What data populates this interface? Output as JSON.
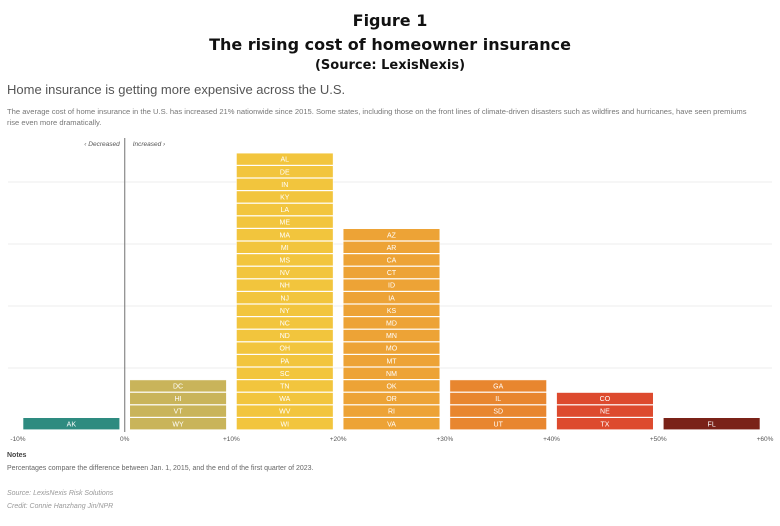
{
  "figure": {
    "label": "Figure 1",
    "title": "The rising cost of homeowner insurance",
    "source": "(Source: LexisNexis)"
  },
  "article": {
    "headline": "Home insurance is getting more expensive across the U.S.",
    "description": "The average cost of home insurance in the U.S. has increased 21% nationwide since 2015. Some states, including those on the front lines of climate-driven disasters such as wildfires and hurricanes, have seen premiums rise even more dramatically."
  },
  "notes": {
    "heading": "Notes",
    "text": "Percentages compare the difference between Jan. 1, 2015, and the end of the first quarter of 2023."
  },
  "credits": {
    "source": "Source: LexisNexis Risk Solutions",
    "credit": "Credit: Connie Hanzhang Jin/NPR"
  },
  "chart_data": {
    "type": "bar",
    "subtype": "stacked-histogram",
    "direction_labels": {
      "decreased": "‹ Decreased",
      "increased": "Increased ›"
    },
    "x_ticks": [
      "-10%",
      "0%",
      "+10%",
      "+20%",
      "+30%",
      "+40%",
      "+50%",
      "+60%"
    ],
    "xlim": [
      -10,
      60
    ],
    "grid": true,
    "bins": [
      {
        "range": [
          -10,
          0
        ],
        "color": "#2e8b80",
        "states": [
          "AK"
        ]
      },
      {
        "range": [
          0,
          10
        ],
        "color": "#c9b45a",
        "states": [
          "WY",
          "VT",
          "HI",
          "DC"
        ]
      },
      {
        "range": [
          10,
          20
        ],
        "color": "#f2c53d",
        "states": [
          "WI",
          "WV",
          "WA",
          "TN",
          "SC",
          "PA",
          "OH",
          "ND",
          "NC",
          "NY",
          "NJ",
          "NH",
          "NV",
          "MS",
          "MI",
          "MA",
          "ME",
          "LA",
          "KY",
          "IN",
          "DE",
          "AL"
        ]
      },
      {
        "range": [
          20,
          30
        ],
        "color": "#eda336",
        "states": [
          "VA",
          "RI",
          "OR",
          "OK",
          "NM",
          "MT",
          "MO",
          "MN",
          "MD",
          "KS",
          "IA",
          "ID",
          "CT",
          "CA",
          "AR",
          "AZ"
        ]
      },
      {
        "range": [
          30,
          40
        ],
        "color": "#e8862f",
        "states": [
          "UT",
          "SD",
          "IL",
          "GA"
        ]
      },
      {
        "range": [
          40,
          50
        ],
        "color": "#dd4a2e",
        "states": [
          "TX",
          "NE",
          "CO"
        ]
      },
      {
        "range": [
          50,
          60
        ],
        "color": "#7a2218",
        "states": [
          "FL"
        ]
      }
    ]
  }
}
